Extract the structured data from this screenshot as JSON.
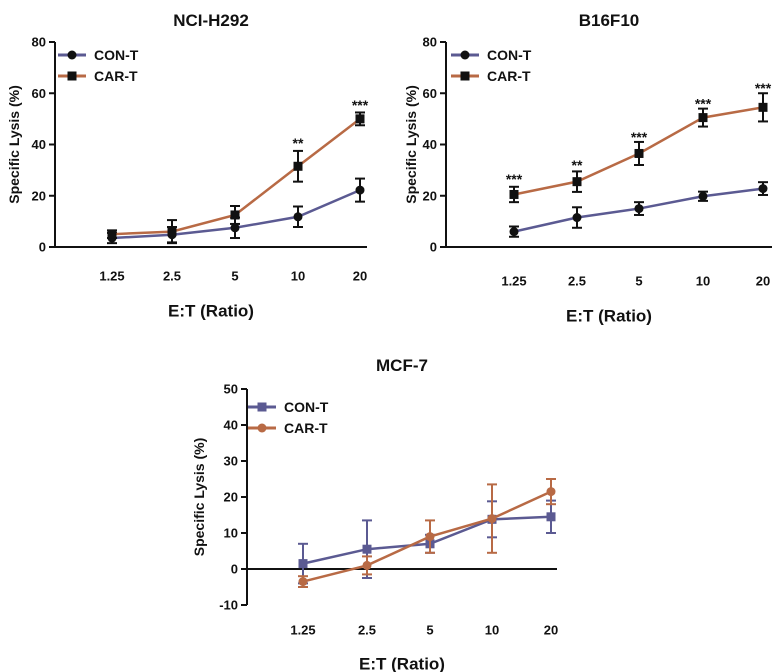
{
  "chart_data": [
    {
      "type": "line",
      "title": "NCI-H292",
      "xlabel": "E:T (Ratio)",
      "ylabel": "Specific Lysis (%)",
      "categories": [
        "1.25",
        "2.5",
        "5",
        "10",
        "20"
      ],
      "ylim": [
        0,
        80
      ],
      "yticks": [
        "0",
        "20",
        "40",
        "60",
        "80"
      ],
      "legend_position": "top-left",
      "series": [
        {
          "name": "CON-T",
          "marker": "circle",
          "color": "#5B5A92",
          "values": [
            3.5,
            4.8,
            7.5,
            11.8,
            22.2
          ],
          "errors": [
            2.0,
            3.0,
            4.0,
            4.0,
            4.5
          ]
        },
        {
          "name": "CAR-T",
          "marker": "square",
          "color": "#B86A45",
          "values": [
            5.0,
            6.0,
            12.5,
            31.5,
            50.0
          ],
          "errors": [
            1.5,
            4.5,
            3.5,
            6.0,
            2.5
          ]
        }
      ],
      "annotations": [
        {
          "category": "10",
          "y": 40.5,
          "text": "**"
        },
        {
          "category": "20",
          "y": 55.5,
          "text": "***"
        }
      ]
    },
    {
      "type": "line",
      "title": "B16F10",
      "xlabel": "E:T (Ratio)",
      "ylabel": "Specific Lysis (%)",
      "categories": [
        "1.25",
        "2.5",
        "5",
        "10",
        "20"
      ],
      "ylim": [
        0,
        80
      ],
      "yticks": [
        "0",
        "20",
        "40",
        "60",
        "80"
      ],
      "legend_position": "top-left",
      "series": [
        {
          "name": "CON-T",
          "marker": "circle",
          "color": "#5B5A92",
          "values": [
            6.0,
            11.5,
            15.0,
            19.8,
            22.8
          ],
          "errors": [
            2.0,
            4.0,
            2.5,
            1.8,
            2.5
          ]
        },
        {
          "name": "CAR-T",
          "marker": "square",
          "color": "#B86A45",
          "values": [
            20.5,
            25.5,
            36.5,
            50.5,
            54.5
          ],
          "errors": [
            3.0,
            4.0,
            4.5,
            3.5,
            5.5
          ]
        }
      ],
      "annotations": [
        {
          "category": "1.25",
          "y": 26.5,
          "text": "***"
        },
        {
          "category": "2.5",
          "y": 32.0,
          "text": "**"
        },
        {
          "category": "5",
          "y": 43.0,
          "text": "***"
        },
        {
          "category": "10",
          "y": 56.0,
          "text": "***"
        },
        {
          "category": "20",
          "y": 62.0,
          "text": "***"
        }
      ]
    },
    {
      "type": "line",
      "title": "MCF-7",
      "xlabel": "E:T (Ratio)",
      "ylabel": "Specific Lysis (%)",
      "categories": [
        "1.25",
        "2.5",
        "5",
        "10",
        "20"
      ],
      "ylim": [
        -10,
        50
      ],
      "yticks": [
        "-10",
        "0",
        "10",
        "20",
        "30",
        "40",
        "50"
      ],
      "legend_position": "top-left",
      "series": [
        {
          "name": "CON-T",
          "marker": "square",
          "color": "#5B5A92",
          "values": [
            1.5,
            5.5,
            7.0,
            13.8,
            14.5
          ],
          "errors": [
            5.5,
            8.0,
            2.5,
            5.0,
            4.5
          ]
        },
        {
          "name": "CAR-T",
          "marker": "circle",
          "color": "#B86A45",
          "values": [
            -3.5,
            1.0,
            9.0,
            14.0,
            21.5
          ],
          "errors": [
            1.5,
            2.5,
            4.5,
            9.5,
            3.5
          ]
        }
      ],
      "annotations": []
    }
  ]
}
